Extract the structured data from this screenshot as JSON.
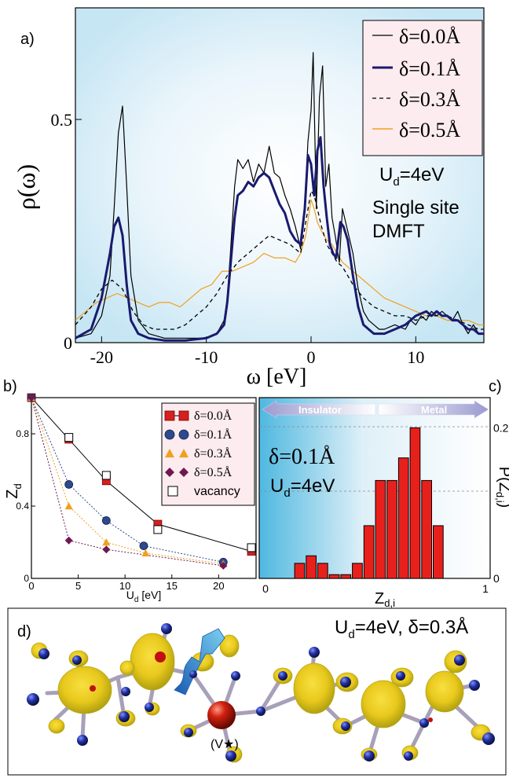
{
  "panels": {
    "a": {
      "label": "a)"
    },
    "b": {
      "label": "b)"
    },
    "c": {
      "label": "c)"
    },
    "d": {
      "label": "d)",
      "annotation": "U",
      "annotation_sub": "d",
      "annotation_rest": "=4eV, δ=0.3Å",
      "site_label": "(V★)"
    }
  },
  "chart_data": [
    {
      "panel": "a",
      "type": "line",
      "xlabel": "ω [eV]",
      "ylabel": "ρ(ω)",
      "xlim": [
        -22.5,
        16.5
      ],
      "ylim": [
        0,
        0.75
      ],
      "xticks": [
        -20,
        -10,
        0,
        10
      ],
      "xtick_labels": [
        "-20",
        "-10",
        "0",
        "10"
      ],
      "yticks": [
        0,
        0.5
      ],
      "ytick_labels": [
        "0",
        "0.5"
      ],
      "legend_position": "top-right",
      "annotations": [
        "U",
        "d",
        "=4eV",
        "Single site",
        "DMFT"
      ],
      "series": [
        {
          "name": "δ=0.0Å",
          "color": "#000000",
          "style": "solid-thin",
          "x": [
            -22.5,
            -21,
            -20,
            -19.2,
            -18.8,
            -18.4,
            -18.0,
            -17.6,
            -17.2,
            -16.5,
            -15.5,
            -14,
            -12,
            -10,
            -9,
            -8.3,
            -8,
            -7.7,
            -7.3,
            -7,
            -6.5,
            -6,
            -5.5,
            -5,
            -4.5,
            -4,
            -3.5,
            -3,
            -2.5,
            -2,
            -1.5,
            -1,
            -0.6,
            -0.3,
            0,
            0.2,
            0.5,
            0.8,
            1.1,
            1.4,
            1.7,
            2,
            2.3,
            2.7,
            3,
            3.3,
            3.6,
            4,
            4.5,
            5,
            5.5,
            6,
            6.5,
            7,
            8,
            9,
            9.5,
            10,
            10.5,
            11,
            11.5,
            12,
            12.5,
            13,
            13.5,
            14,
            14.5,
            15,
            15.5,
            16,
            16.5
          ],
          "y": [
            0.01,
            0.02,
            0.06,
            0.15,
            0.3,
            0.47,
            0.53,
            0.35,
            0.15,
            0.05,
            0.02,
            0.01,
            0.01,
            0.01,
            0.02,
            0.05,
            0.1,
            0.2,
            0.35,
            0.41,
            0.39,
            0.41,
            0.36,
            0.4,
            0.38,
            0.44,
            0.38,
            0.37,
            0.33,
            0.3,
            0.26,
            0.21,
            0.3,
            0.45,
            0.52,
            0.65,
            0.3,
            0.55,
            0.62,
            0.35,
            0.4,
            0.28,
            0.24,
            0.18,
            0.3,
            0.27,
            0.24,
            0.2,
            0.12,
            0.07,
            0.05,
            0.04,
            0.03,
            0.03,
            0.04,
            0.03,
            0.05,
            0.04,
            0.06,
            0.05,
            0.07,
            0.06,
            0.07,
            0.06,
            0.05,
            0.07,
            0.04,
            0.02,
            0.04,
            0.02,
            0.02
          ]
        },
        {
          "name": "δ=0.1Å",
          "color": "#1a1a6e",
          "style": "solid-thick",
          "x": [
            -22.5,
            -21,
            -20,
            -19.2,
            -18.8,
            -18.4,
            -18.0,
            -17.6,
            -17.2,
            -16.5,
            -15.5,
            -14,
            -12,
            -10,
            -9,
            -8.3,
            -8,
            -7.7,
            -7.3,
            -7,
            -6.5,
            -6,
            -5.5,
            -5,
            -4.5,
            -4,
            -3.5,
            -3,
            -2.5,
            -2,
            -1.5,
            -1,
            -0.6,
            -0.3,
            0,
            0.3,
            0.6,
            0.9,
            1.2,
            1.5,
            1.8,
            2.1,
            2.4,
            2.8,
            3.1,
            3.5,
            4,
            4.5,
            5,
            5.5,
            6,
            6.5,
            7,
            8,
            9,
            10,
            11,
            11.5,
            12,
            12.5,
            13,
            13.5,
            14,
            14.5,
            15,
            15.5,
            16,
            16.5
          ],
          "y": [
            0.01,
            0.03,
            0.1,
            0.2,
            0.26,
            0.28,
            0.24,
            0.13,
            0.05,
            0.02,
            0.01,
            0.005,
            0.005,
            0.01,
            0.02,
            0.04,
            0.09,
            0.17,
            0.28,
            0.33,
            0.34,
            0.36,
            0.35,
            0.37,
            0.38,
            0.37,
            0.34,
            0.31,
            0.29,
            0.25,
            0.23,
            0.22,
            0.3,
            0.42,
            0.4,
            0.33,
            0.43,
            0.46,
            0.35,
            0.28,
            0.22,
            0.2,
            0.19,
            0.27,
            0.26,
            0.23,
            0.15,
            0.08,
            0.04,
            0.03,
            0.02,
            0.02,
            0.02,
            0.03,
            0.04,
            0.06,
            0.07,
            0.06,
            0.07,
            0.06,
            0.06,
            0.05,
            0.05,
            0.04,
            0.03,
            0.03,
            0.02,
            0.02
          ]
        },
        {
          "name": "δ=0.3Å",
          "color": "#000000",
          "style": "dashed",
          "x": [
            -22.5,
            -21,
            -20,
            -19,
            -18,
            -17,
            -16,
            -15,
            -14,
            -13,
            -12,
            -11,
            -10,
            -9,
            -8,
            -7,
            -6,
            -5,
            -4,
            -3,
            -2,
            -1.5,
            -1,
            -0.5,
            0,
            0.3,
            0.6,
            1,
            1.5,
            2,
            2.5,
            3,
            3.5,
            4,
            5,
            6,
            7,
            8,
            9,
            10,
            11,
            12,
            13,
            14,
            15,
            16,
            16.5
          ],
          "y": [
            0.04,
            0.08,
            0.12,
            0.14,
            0.12,
            0.07,
            0.04,
            0.03,
            0.03,
            0.03,
            0.04,
            0.06,
            0.08,
            0.11,
            0.15,
            0.18,
            0.2,
            0.22,
            0.24,
            0.23,
            0.22,
            0.21,
            0.2,
            0.27,
            0.34,
            0.33,
            0.3,
            0.26,
            0.22,
            0.2,
            0.18,
            0.17,
            0.15,
            0.13,
            0.1,
            0.08,
            0.07,
            0.06,
            0.06,
            0.05,
            0.06,
            0.06,
            0.06,
            0.05,
            0.04,
            0.03,
            0.03
          ]
        },
        {
          "name": "δ=0.5Å",
          "color": "#f0a020",
          "style": "solid-thin",
          "x": [
            -22.5,
            -21.5,
            -20.5,
            -19.5,
            -18.5,
            -17.5,
            -16.5,
            -15.5,
            -14.5,
            -13.5,
            -12.5,
            -11.5,
            -10.5,
            -9.5,
            -8.5,
            -7.5,
            -6.5,
            -5.5,
            -4.5,
            -3.5,
            -2.5,
            -1.5,
            -1,
            -0.5,
            0,
            0.3,
            0.6,
            1,
            1.5,
            2,
            2.5,
            3,
            4,
            5,
            6,
            7,
            8,
            9,
            10,
            11,
            12,
            13,
            14,
            15,
            16,
            16.5
          ],
          "y": [
            0.05,
            0.07,
            0.09,
            0.1,
            0.11,
            0.1,
            0.09,
            0.08,
            0.09,
            0.09,
            0.08,
            0.1,
            0.12,
            0.13,
            0.16,
            0.16,
            0.17,
            0.18,
            0.2,
            0.19,
            0.19,
            0.18,
            0.2,
            0.24,
            0.32,
            0.3,
            0.27,
            0.25,
            0.23,
            0.22,
            0.2,
            0.18,
            0.16,
            0.14,
            0.12,
            0.1,
            0.09,
            0.08,
            0.07,
            0.06,
            0.06,
            0.05,
            0.05,
            0.05,
            0.04,
            0.04
          ]
        }
      ]
    },
    {
      "panel": "b",
      "type": "line",
      "xlabel": "U",
      "xlabel_sub": "d",
      "xlabel_rest": " [eV]",
      "ylabel": "Z",
      "ylabel_sub": "d",
      "xlim": [
        0,
        24
      ],
      "ylim": [
        0,
        1
      ],
      "xticks": [
        0,
        5,
        10,
        15,
        20
      ],
      "xtick_labels": [
        "0",
        "5",
        "10",
        "15",
        "20"
      ],
      "yticks": [
        0,
        0.4,
        0.8
      ],
      "ytick_labels": [
        "0",
        "0.4",
        "0.8"
      ],
      "legend_position": "top-right",
      "series": [
        {
          "name": "δ=0.0Å",
          "color": "#d42020",
          "marker": "square",
          "line": "solid",
          "x": [
            0,
            4,
            8,
            13.5,
            23.5
          ],
          "y": [
            1.0,
            0.77,
            0.54,
            0.3,
            0.15
          ]
        },
        {
          "name": "δ=0.1Å",
          "color": "#2c4a90",
          "marker": "circle",
          "line": "dotted",
          "x": [
            0,
            4,
            8,
            12,
            20.5
          ],
          "y": [
            1.0,
            0.52,
            0.32,
            0.18,
            0.09
          ]
        },
        {
          "name": "δ=0.3Å",
          "color": "#f0a020",
          "marker": "triangle",
          "line": "dotted",
          "x": [
            0,
            4,
            8,
            12.2,
            20.5
          ],
          "y": [
            1.0,
            0.4,
            0.2,
            0.14,
            0.08
          ]
        },
        {
          "name": "δ=0.5Å",
          "color": "#701850",
          "marker": "diamond",
          "line": "dotted",
          "x": [
            0,
            4,
            8,
            20.5
          ],
          "y": [
            1.0,
            0.21,
            0.16,
            0.07
          ]
        },
        {
          "name": "vacancy",
          "color": "#000000",
          "marker": "open-square",
          "line": "none",
          "x": [
            4,
            8,
            13.5,
            23.5
          ],
          "y": [
            0.78,
            0.57,
            0.27,
            0.17
          ]
        }
      ]
    },
    {
      "panel": "c",
      "type": "bar",
      "xlabel": "Z",
      "xlabel_sub": "d,i",
      "ylabel": "P(Z",
      "ylabel_sub": "d,i",
      "ylabel_rest": ")",
      "xlim": [
        0,
        1
      ],
      "ylim": [
        0,
        0.24
      ],
      "xticks": [
        0,
        1
      ],
      "xtick_labels": [
        "0",
        "1"
      ],
      "yticks": [
        0,
        0.2
      ],
      "ytick_labels": [
        "0",
        "0.2"
      ],
      "annotation_delta": "δ=0.1Å",
      "annotation_u": "U",
      "annotation_u_sub": "d",
      "annotation_u_rest": "=4eV",
      "insulator_label": "Insulator",
      "metal_label": "Metal",
      "bin_width": 0.05,
      "bins": [
        0.15,
        0.2,
        0.25,
        0.3,
        0.35,
        0.4,
        0.45,
        0.5,
        0.55,
        0.6,
        0.65,
        0.7,
        0.75
      ],
      "values": [
        0.02,
        0.03,
        0.02,
        0.005,
        0.005,
        0.02,
        0.07,
        0.13,
        0.13,
        0.16,
        0.2,
        0.13,
        0.07
      ]
    }
  ]
}
